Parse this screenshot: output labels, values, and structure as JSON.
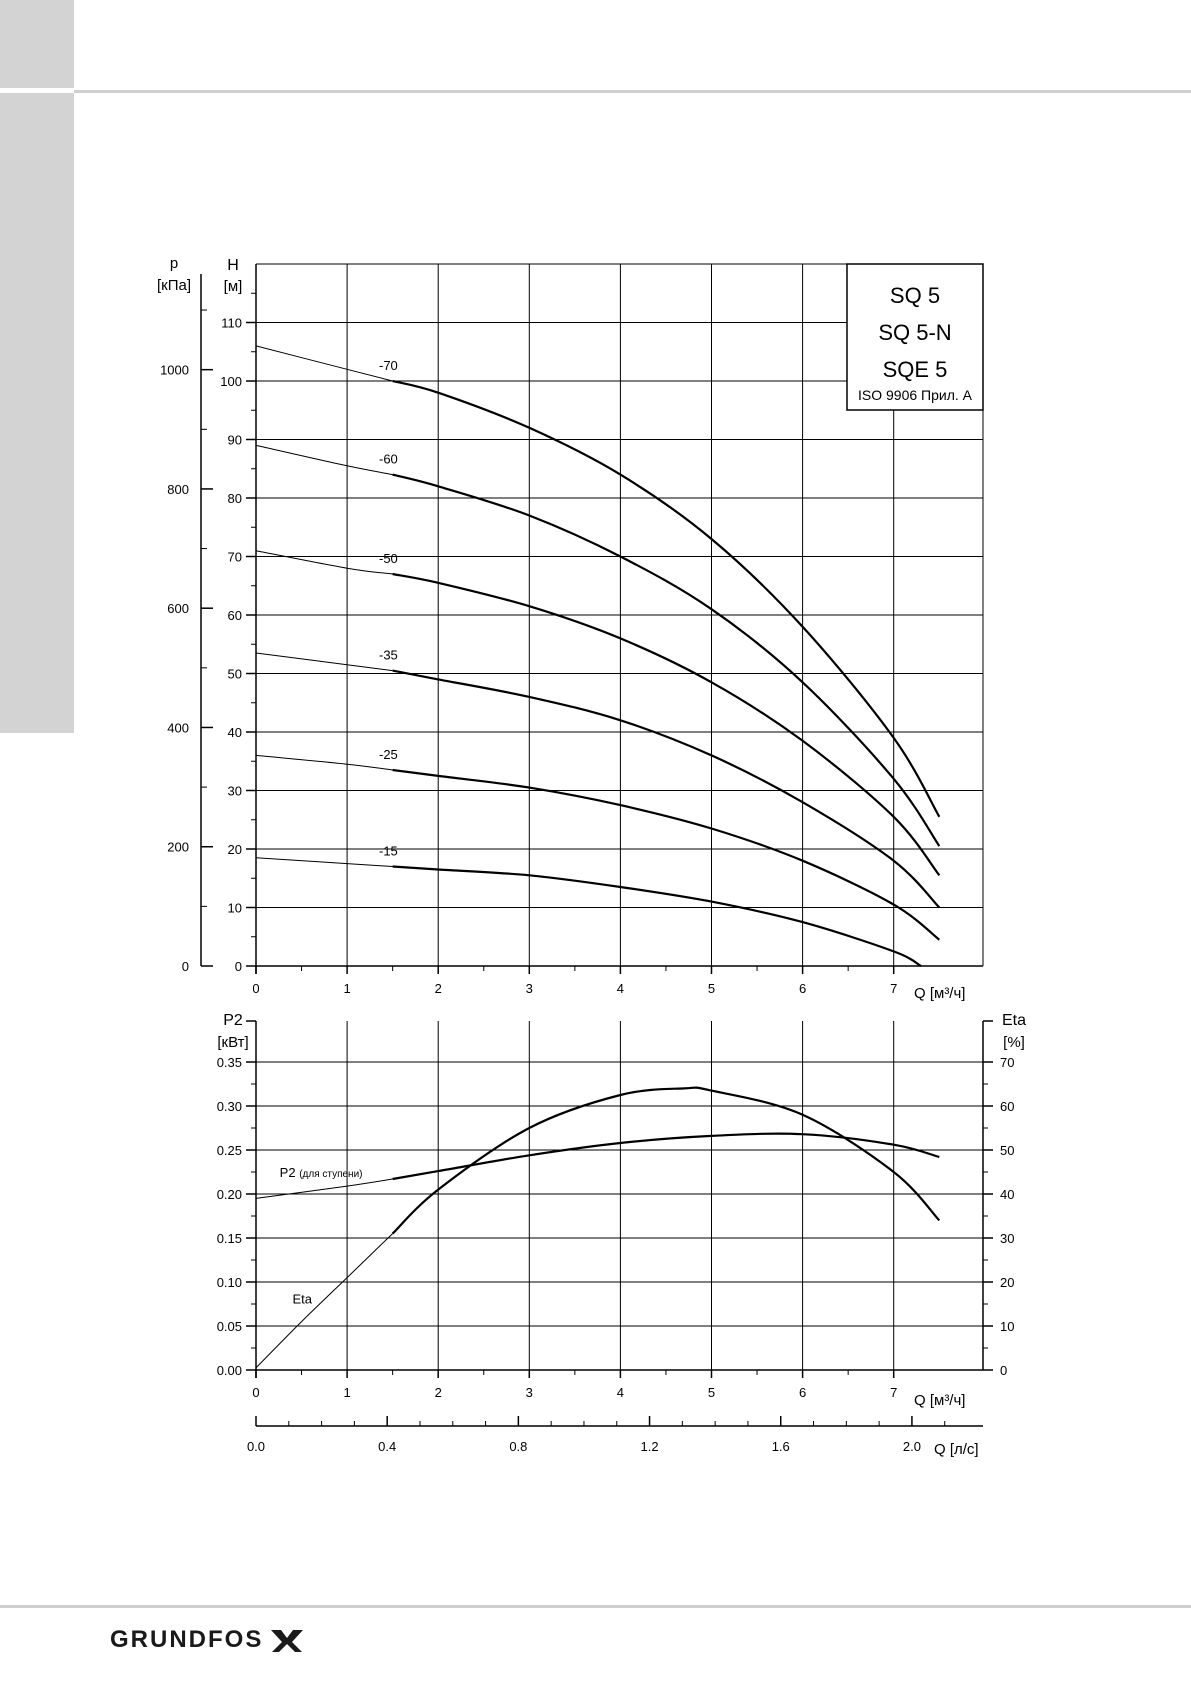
{
  "chart_data": [
    {
      "type": "line",
      "legend_box": [
        "SQ 5",
        "SQ 5-N",
        "SQE 5",
        "ISO 9906 Прил. A"
      ],
      "y_left_label": [
        "p",
        "[кПа]"
      ],
      "y_right_label": [
        "H",
        "[м]"
      ],
      "xlabel": "Q [м³/ч]",
      "xlim": [
        0,
        8
      ],
      "ylim": [
        0,
        120
      ],
      "grid": true,
      "x_ticks": [
        "0",
        "1",
        "2",
        "3",
        "4",
        "5",
        "6",
        "7"
      ],
      "h_ticks": [
        "0",
        "10",
        "20",
        "30",
        "40",
        "50",
        "60",
        "70",
        "80",
        "90",
        "100",
        "110"
      ],
      "p_ticks": [
        "0",
        "200",
        "400",
        "600",
        "800",
        "1000"
      ],
      "series": [
        {
          "name": "-70",
          "x": [
            0,
            1,
            1.5,
            2,
            3,
            4,
            5,
            6,
            7,
            7.5
          ],
          "y": [
            106,
            102,
            100,
            98,
            92,
            84,
            73,
            58,
            39,
            25.5
          ]
        },
        {
          "name": "-60",
          "x": [
            0,
            1,
            1.5,
            2,
            3,
            4,
            5,
            6,
            7,
            7.5
          ],
          "y": [
            89,
            85.5,
            84,
            82,
            77,
            70,
            61,
            48.5,
            32,
            20.5
          ]
        },
        {
          "name": "-50",
          "x": [
            0,
            1,
            1.5,
            2,
            3,
            4,
            5,
            6,
            7,
            7.5
          ],
          "y": [
            71,
            68,
            67,
            65.5,
            61.5,
            56,
            48.5,
            38.5,
            25.5,
            15.5
          ]
        },
        {
          "name": "-35",
          "x": [
            0,
            1,
            1.5,
            2,
            3,
            4,
            5,
            6,
            7,
            7.5
          ],
          "y": [
            53.5,
            51.5,
            50.5,
            49,
            46,
            42,
            36,
            28,
            18,
            10
          ]
        },
        {
          "name": "-25",
          "x": [
            0,
            1,
            1.5,
            2,
            3,
            4,
            5,
            6,
            7,
            7.5
          ],
          "y": [
            36,
            34.5,
            33.5,
            32.5,
            30.5,
            27.5,
            23.5,
            18,
            10.5,
            4.5
          ]
        },
        {
          "name": "-15",
          "x": [
            0,
            1,
            1.5,
            2,
            3,
            4,
            5,
            6,
            7,
            7.3
          ],
          "y": [
            18.5,
            17.5,
            17,
            16.5,
            15.5,
            13.5,
            11,
            7.5,
            2.5,
            0
          ]
        }
      ]
    },
    {
      "type": "line",
      "y_left_label": [
        "P2",
        "[кВт]"
      ],
      "y_right_label": [
        "Eta",
        "[%]"
      ],
      "xlabel": "Q [м³/ч]",
      "x2label": "Q [л/с]",
      "xlim": [
        0,
        8
      ],
      "ylim_left": [
        0,
        0.35
      ],
      "ylim_right": [
        0,
        70
      ],
      "grid": true,
      "x_ticks": [
        "0",
        "1",
        "2",
        "3",
        "4",
        "5",
        "6",
        "7"
      ],
      "x2_ticks": [
        "0.0",
        "0.4",
        "0.8",
        "1.2",
        "1.6",
        "2.0"
      ],
      "p2_ticks": [
        "0.00",
        "0.05",
        "0.10",
        "0.15",
        "0.20",
        "0.25",
        "0.30",
        "0.35"
      ],
      "eta_ticks": [
        "0",
        "10",
        "20",
        "30",
        "40",
        "50",
        "60",
        "70"
      ],
      "series": [
        {
          "name": "P2",
          "label": "P2",
          "label_suffix": "(для ступени)",
          "axis": "left",
          "x": [
            0,
            1,
            1.5,
            2,
            3,
            4,
            5,
            6,
            7,
            7.5
          ],
          "y": [
            0.195,
            0.209,
            0.217,
            0.226,
            0.244,
            0.258,
            0.266,
            0.268,
            0.256,
            0.242
          ]
        },
        {
          "name": "Eta",
          "axis": "right",
          "x": [
            0,
            0.5,
            1,
            1.5,
            2,
            3,
            4,
            4.7,
            5,
            6,
            7,
            7.5
          ],
          "y": [
            0.5,
            11,
            21,
            31,
            41,
            55,
            62.5,
            64,
            63.5,
            58,
            45,
            34
          ]
        }
      ]
    }
  ],
  "brand": {
    "name": "GRUNDFOS"
  }
}
